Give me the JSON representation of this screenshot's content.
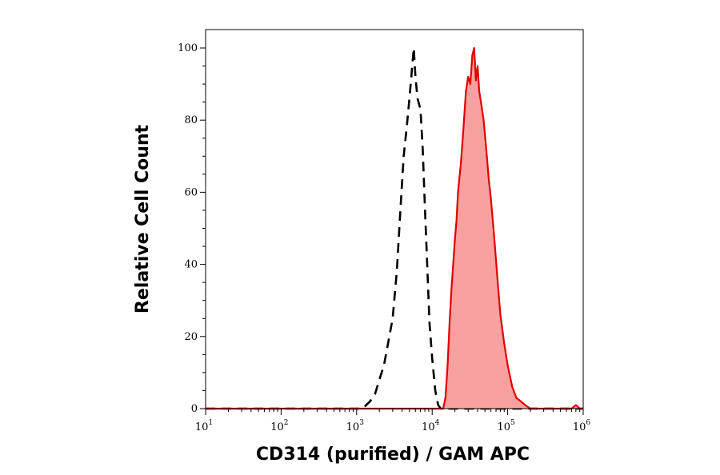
{
  "chart_data": {
    "type": "area",
    "xlabel": "CD314 (purified) / GAM APC",
    "ylabel": "Relative Cell Count",
    "x_scale": "log",
    "xlim": [
      10,
      1000000
    ],
    "ylim": [
      0,
      100
    ],
    "x_ticks": [
      {
        "base": "10",
        "exp": "1",
        "value": 10
      },
      {
        "base": "10",
        "exp": "2",
        "value": 100
      },
      {
        "base": "10",
        "exp": "3",
        "value": 1000
      },
      {
        "base": "10",
        "exp": "4",
        "value": 10000
      },
      {
        "base": "10",
        "exp": "5",
        "value": 100000
      },
      {
        "base": "10",
        "exp": "6",
        "value": 1000000
      }
    ],
    "y_ticks": [
      "0",
      "20",
      "40",
      "60",
      "80",
      "100"
    ],
    "grid": false,
    "series": [
      {
        "style": "dashed",
        "color": "#000000",
        "fill": "none",
        "points": [
          [
            10,
            0
          ],
          [
            1000,
            0
          ],
          [
            1200,
            0
          ],
          [
            1500,
            2
          ],
          [
            1750,
            4
          ],
          [
            2000,
            8
          ],
          [
            2300,
            12
          ],
          [
            2600,
            18
          ],
          [
            3000,
            25
          ],
          [
            3400,
            38
          ],
          [
            3800,
            55
          ],
          [
            4200,
            70
          ],
          [
            4600,
            78
          ],
          [
            5000,
            86
          ],
          [
            5400,
            94
          ],
          [
            5700,
            100
          ],
          [
            6000,
            92
          ],
          [
            6400,
            86
          ],
          [
            7000,
            83
          ],
          [
            7500,
            72
          ],
          [
            8000,
            56
          ],
          [
            8600,
            40
          ],
          [
            9200,
            24
          ],
          [
            10000,
            14
          ],
          [
            11000,
            5
          ],
          [
            12000,
            1
          ],
          [
            13000,
            0
          ],
          [
            1000000,
            0
          ]
        ]
      },
      {
        "style": "solid",
        "color": "#e00000",
        "fill": "#f9a0a0",
        "points": [
          [
            10,
            0
          ],
          [
            12000,
            0
          ],
          [
            14000,
            0
          ],
          [
            15000,
            3
          ],
          [
            16000,
            12
          ],
          [
            17000,
            24
          ],
          [
            18000,
            33
          ],
          [
            19000,
            40
          ],
          [
            20000,
            47
          ],
          [
            21000,
            52
          ],
          [
            22000,
            60
          ],
          [
            24000,
            68
          ],
          [
            26000,
            78
          ],
          [
            28000,
            88
          ],
          [
            30000,
            92
          ],
          [
            32000,
            90
          ],
          [
            34000,
            98
          ],
          [
            36000,
            100
          ],
          [
            38000,
            91
          ],
          [
            40000,
            95
          ],
          [
            42000,
            88
          ],
          [
            45000,
            84
          ],
          [
            48000,
            80
          ],
          [
            52000,
            72
          ],
          [
            56000,
            64
          ],
          [
            60000,
            58
          ],
          [
            66000,
            48
          ],
          [
            72000,
            38
          ],
          [
            80000,
            26
          ],
          [
            90000,
            18
          ],
          [
            100000,
            12
          ],
          [
            115000,
            6
          ],
          [
            130000,
            3
          ],
          [
            150000,
            2
          ],
          [
            170000,
            1
          ],
          [
            200000,
            0
          ],
          [
            700000,
            0
          ],
          [
            800000,
            1
          ],
          [
            900000,
            0
          ],
          [
            1000000,
            0
          ]
        ]
      }
    ]
  }
}
